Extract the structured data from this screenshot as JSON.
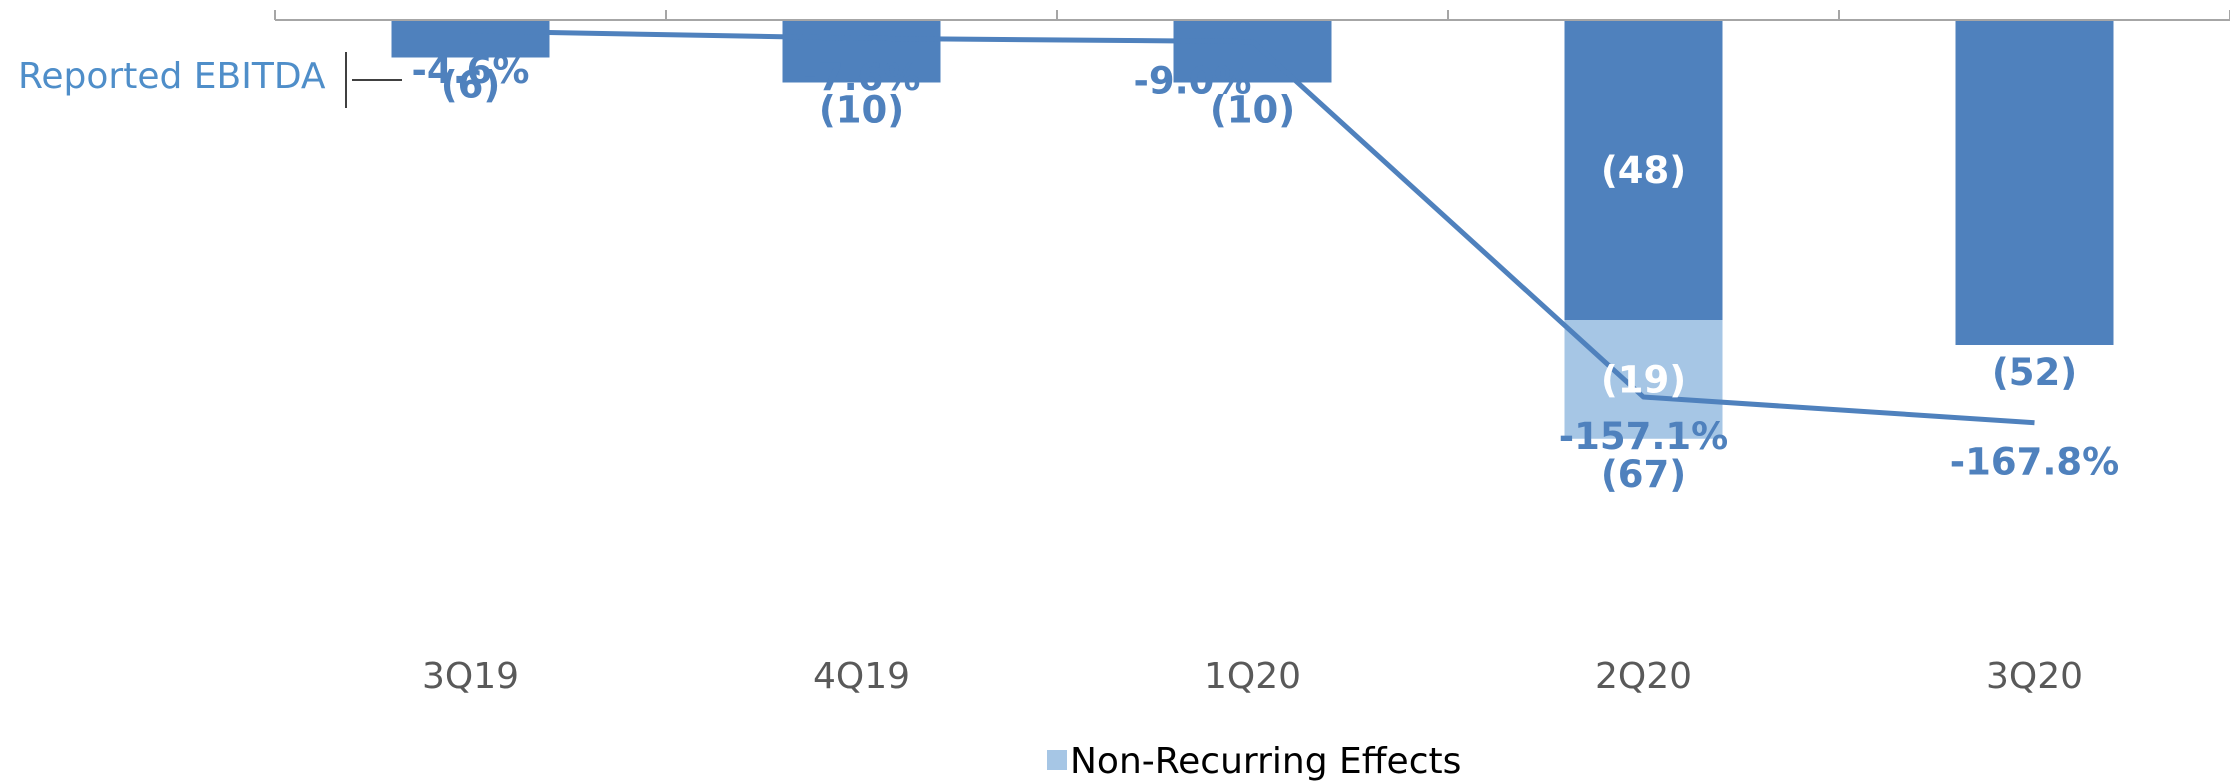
{
  "colors": {
    "bar": "#4f81bd",
    "non_recurring": "#a6c6e5",
    "label_blue": "#4f81bd",
    "label_white": "#ffffff",
    "axis": "#a6a6a6",
    "tick_text": "#595959",
    "title_blue": "#4f8ec9"
  },
  "chart_data": {
    "type": "bar",
    "categories": [
      "3Q19",
      "4Q19",
      "1Q20",
      "2Q20",
      "3Q20"
    ],
    "series": [
      {
        "name": "Reported EBITDA",
        "kind": "bar",
        "values": [
          -6,
          -10,
          -10,
          -48,
          -52
        ],
        "labels": [
          "(6)",
          "(10)",
          "(10)",
          "(48)",
          "(52)"
        ]
      },
      {
        "name": "Non-Recurring Effects",
        "kind": "bar",
        "values": [
          null,
          null,
          null,
          -19,
          null
        ],
        "labels": [
          "",
          "",
          "",
          "(19)",
          ""
        ]
      },
      {
        "name": "",
        "kind": "line",
        "values": [
          -4.6,
          -7.6,
          -9.0,
          -157.1,
          -167.8
        ],
        "labels": [
          "-4.6%",
          "-7.6%",
          "-9.0%",
          "-157.1%",
          "-167.8%"
        ]
      }
    ],
    "totals": {
      "2Q20": {
        "value": -67,
        "label": "(67)"
      }
    },
    "legend": [
      "Non-Recurring Effects"
    ],
    "legend_position": "bottom",
    "title": "",
    "xlabel": "",
    "ylabel": "",
    "bar_axis_range": [
      -75,
      0
    ],
    "line_axis_range": [
      -240,
      0
    ]
  }
}
